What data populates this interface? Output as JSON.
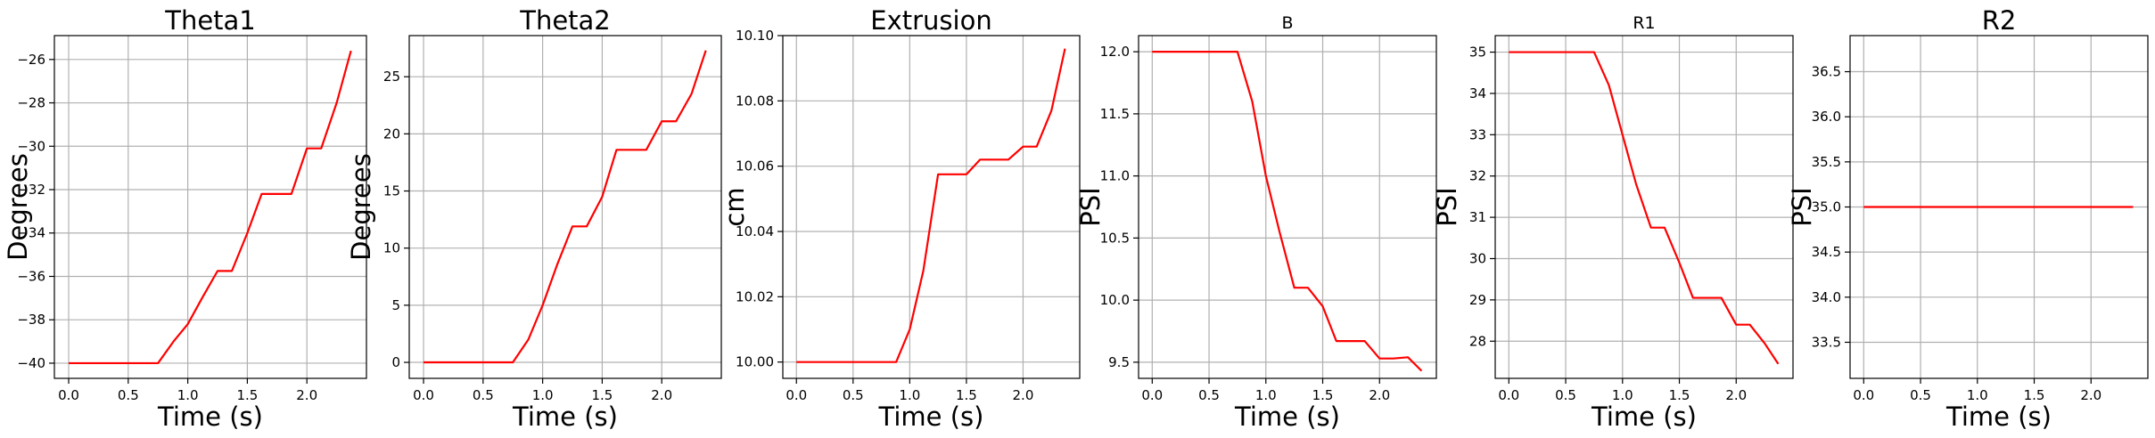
{
  "figure": {
    "background": "#ffffff"
  },
  "chart_data": [
    {
      "type": "line",
      "title": "Theta1",
      "title_size": "large",
      "xlabel": "Time (s)",
      "ylabel": "Degrees",
      "grid": true,
      "xlim": [
        -0.12,
        2.5
      ],
      "ylim": [
        -40.7,
        -24.9
      ],
      "xticks": [
        0.0,
        0.5,
        1.0,
        1.5,
        2.0
      ],
      "xtick_labels": [
        "0.0",
        "0.5",
        "1.0",
        "1.5",
        "2.0"
      ],
      "yticks": [
        -40,
        -38,
        -36,
        -34,
        -32,
        -30,
        -28,
        -26
      ],
      "ytick_labels": [
        "−40",
        "−38",
        "−36",
        "−34",
        "−32",
        "−30",
        "−28",
        "−26"
      ],
      "series": [
        {
          "color": "#ff0000",
          "x": [
            0.0,
            0.75,
            0.88,
            1.0,
            1.12,
            1.25,
            1.37,
            1.5,
            1.62,
            1.75,
            1.87,
            2.0,
            2.12,
            2.25,
            2.37
          ],
          "y": [
            -40,
            -40,
            -39.0,
            -38.2,
            -37.0,
            -35.75,
            -35.75,
            -34.0,
            -32.2,
            -32.2,
            -32.2,
            -30.1,
            -30.1,
            -28.0,
            -25.6
          ]
        }
      ]
    },
    {
      "type": "line",
      "title": "Theta2",
      "title_size": "large",
      "xlabel": "Time (s)",
      "ylabel": "Degrees",
      "grid": true,
      "xlim": [
        -0.12,
        2.5
      ],
      "ylim": [
        -1.4,
        28.6
      ],
      "xticks": [
        0.0,
        0.5,
        1.0,
        1.5,
        2.0
      ],
      "xtick_labels": [
        "0.0",
        "0.5",
        "1.0",
        "1.5",
        "2.0"
      ],
      "yticks": [
        0,
        5,
        10,
        15,
        20,
        25
      ],
      "ytick_labels": [
        "0",
        "5",
        "10",
        "15",
        "20",
        "25"
      ],
      "series": [
        {
          "color": "#ff0000",
          "x": [
            0.0,
            0.75,
            0.88,
            1.0,
            1.12,
            1.25,
            1.37,
            1.5,
            1.62,
            1.75,
            1.87,
            2.0,
            2.12,
            2.25,
            2.37
          ],
          "y": [
            0,
            0,
            2.0,
            5.0,
            8.5,
            11.9,
            11.9,
            14.5,
            18.6,
            18.6,
            18.6,
            21.1,
            21.1,
            23.5,
            27.3
          ]
        }
      ]
    },
    {
      "type": "line",
      "title": "Extrusion",
      "title_size": "large",
      "xlabel": "Time (s)",
      "ylabel": "cm",
      "grid": true,
      "xlim": [
        -0.12,
        2.5
      ],
      "ylim": [
        9.995,
        10.1
      ],
      "xticks": [
        0.0,
        0.5,
        1.0,
        1.5,
        2.0
      ],
      "xtick_labels": [
        "0.0",
        "0.5",
        "1.0",
        "1.5",
        "2.0"
      ],
      "yticks": [
        10.0,
        10.02,
        10.04,
        10.06,
        10.08,
        10.1
      ],
      "ytick_labels": [
        "10.00",
        "10.02",
        "10.04",
        "10.06",
        "10.08",
        "10.10"
      ],
      "series": [
        {
          "color": "#ff0000",
          "x": [
            0.0,
            0.88,
            1.0,
            1.12,
            1.25,
            1.37,
            1.5,
            1.62,
            1.75,
            1.87,
            2.0,
            2.12,
            2.25,
            2.37
          ],
          "y": [
            10.0,
            10.0,
            10.01,
            10.028,
            10.0575,
            10.0575,
            10.0575,
            10.062,
            10.062,
            10.062,
            10.066,
            10.066,
            10.077,
            10.096
          ]
        }
      ]
    },
    {
      "type": "line",
      "title": "B",
      "title_size": "small",
      "xlabel": "Time (s)",
      "ylabel": "PSI",
      "grid": true,
      "xlim": [
        -0.12,
        2.5
      ],
      "ylim": [
        9.37,
        12.13
      ],
      "xticks": [
        0.0,
        0.5,
        1.0,
        1.5,
        2.0
      ],
      "xtick_labels": [
        "0.0",
        "0.5",
        "1.0",
        "1.5",
        "2.0"
      ],
      "yticks": [
        9.5,
        10.0,
        10.5,
        11.0,
        11.5,
        12.0
      ],
      "ytick_labels": [
        "9.5",
        "10.0",
        "10.5",
        "11.0",
        "11.5",
        "12.0"
      ],
      "series": [
        {
          "color": "#ff0000",
          "x": [
            0.0,
            0.75,
            0.88,
            1.0,
            1.12,
            1.25,
            1.37,
            1.5,
            1.62,
            1.75,
            1.87,
            2.0,
            2.12,
            2.25,
            2.37
          ],
          "y": [
            12.0,
            12.0,
            11.6,
            11.0,
            10.55,
            10.1,
            10.1,
            9.95,
            9.67,
            9.67,
            9.67,
            9.53,
            9.53,
            9.54,
            9.43
          ]
        }
      ]
    },
    {
      "type": "line",
      "title": "R1",
      "title_size": "small",
      "xlabel": "Time (s)",
      "ylabel": "PSI",
      "grid": true,
      "xlim": [
        -0.12,
        2.5
      ],
      "ylim": [
        27.1,
        35.4
      ],
      "xticks": [
        0.0,
        0.5,
        1.0,
        1.5,
        2.0
      ],
      "xtick_labels": [
        "0.0",
        "0.5",
        "1.0",
        "1.5",
        "2.0"
      ],
      "yticks": [
        28,
        29,
        30,
        31,
        32,
        33,
        34,
        35
      ],
      "ytick_labels": [
        "28",
        "29",
        "30",
        "31",
        "32",
        "33",
        "34",
        "35"
      ],
      "series": [
        {
          "color": "#ff0000",
          "x": [
            0.0,
            0.75,
            0.88,
            1.0,
            1.12,
            1.25,
            1.37,
            1.5,
            1.62,
            1.75,
            1.87,
            2.0,
            2.12,
            2.25,
            2.37
          ],
          "y": [
            35,
            35,
            34.2,
            33.0,
            31.8,
            30.75,
            30.75,
            29.9,
            29.05,
            29.05,
            29.05,
            28.4,
            28.4,
            27.95,
            27.45
          ]
        }
      ]
    },
    {
      "type": "line",
      "title": "R2",
      "title_size": "large",
      "xlabel": "Time (s)",
      "ylabel": "PSI",
      "grid": true,
      "xlim": [
        -0.12,
        2.5
      ],
      "ylim": [
        33.1,
        36.9
      ],
      "xticks": [
        0.0,
        0.5,
        1.0,
        1.5,
        2.0
      ],
      "xtick_labels": [
        "0.0",
        "0.5",
        "1.0",
        "1.5",
        "2.0"
      ],
      "yticks": [
        33.5,
        34.0,
        34.5,
        35.0,
        35.5,
        36.0,
        36.5
      ],
      "ytick_labels": [
        "33.5",
        "34.0",
        "34.5",
        "35.0",
        "35.5",
        "36.0",
        "36.5"
      ],
      "series": [
        {
          "color": "#ff0000",
          "x": [
            0.0,
            0.75,
            0.88,
            1.0,
            1.12,
            1.25,
            1.37,
            1.5,
            1.62,
            1.75,
            1.87,
            2.0,
            2.12,
            2.25,
            2.37
          ],
          "y": [
            35,
            35,
            35,
            35,
            35,
            35,
            35,
            35,
            35,
            35,
            35,
            35,
            35,
            35,
            35
          ]
        }
      ]
    }
  ]
}
